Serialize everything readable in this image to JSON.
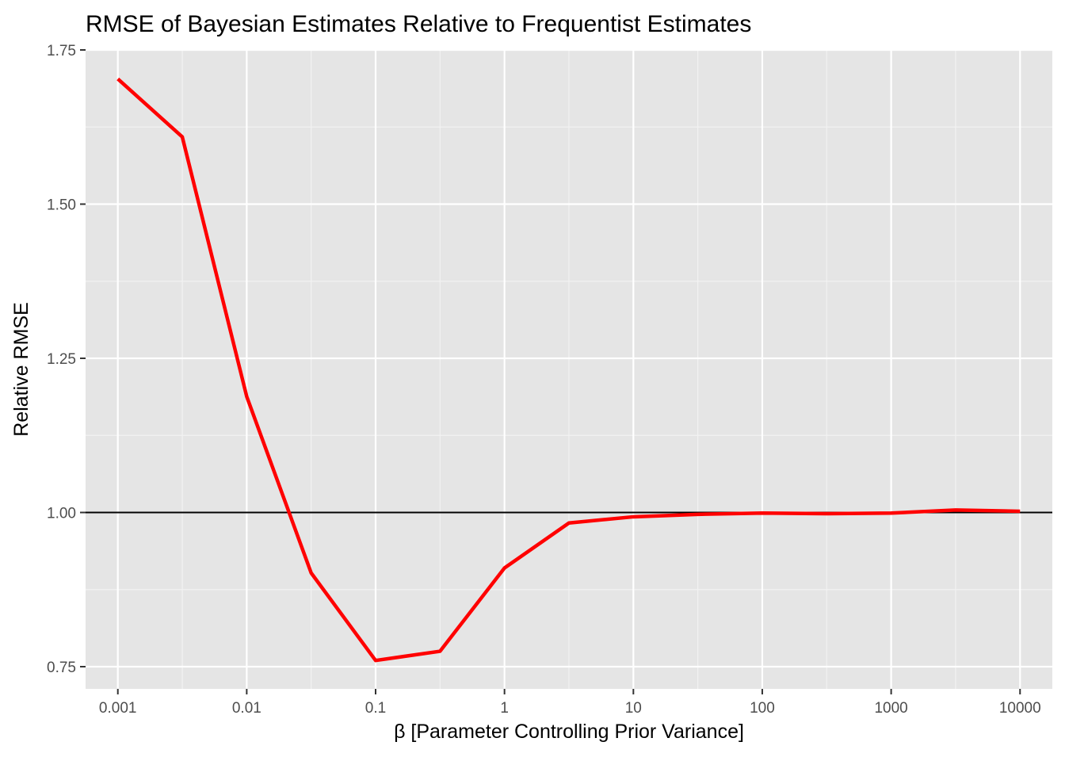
{
  "chart_data": {
    "type": "line",
    "title": "RMSE of Bayesian Estimates Relative to Frequentist Estimates",
    "xlabel": "β [Parameter Controlling Prior Variance]",
    "ylabel": "Relative RMSE",
    "x_scale": "log10",
    "x_ticks": [
      0.001,
      0.01,
      0.1,
      1,
      10,
      100,
      1000,
      10000
    ],
    "x_tick_labels": [
      "0.001",
      "0.01",
      "0.1",
      "1",
      "10",
      "100",
      "1000",
      "10000"
    ],
    "y_ticks": [
      0.75,
      1.0,
      1.25,
      1.5,
      1.75
    ],
    "y_tick_labels": [
      "0.75",
      "1.00",
      "1.25",
      "1.50",
      "1.75"
    ],
    "xlim": [
      0.000562,
      17800
    ],
    "ylim": [
      0.714,
      1.75
    ],
    "grid": true,
    "reference_line": {
      "y": 1.0,
      "color": "#000000"
    },
    "series": [
      {
        "color": "#ff0000",
        "x": [
          0.001,
          0.003162,
          0.01,
          0.03162,
          0.1,
          0.3162,
          1,
          3.162,
          10,
          31.62,
          100,
          316.2,
          1000,
          3162,
          10000
        ],
        "y": [
          1.703,
          1.609,
          1.188,
          0.902,
          0.76,
          0.775,
          0.91,
          0.983,
          0.993,
          0.997,
          0.999,
          0.998,
          0.999,
          1.004,
          1.002
        ]
      }
    ],
    "colors": {
      "panel_background": "#e5e5e5",
      "grid": "#ffffff",
      "text": "#4d4d4d"
    }
  }
}
